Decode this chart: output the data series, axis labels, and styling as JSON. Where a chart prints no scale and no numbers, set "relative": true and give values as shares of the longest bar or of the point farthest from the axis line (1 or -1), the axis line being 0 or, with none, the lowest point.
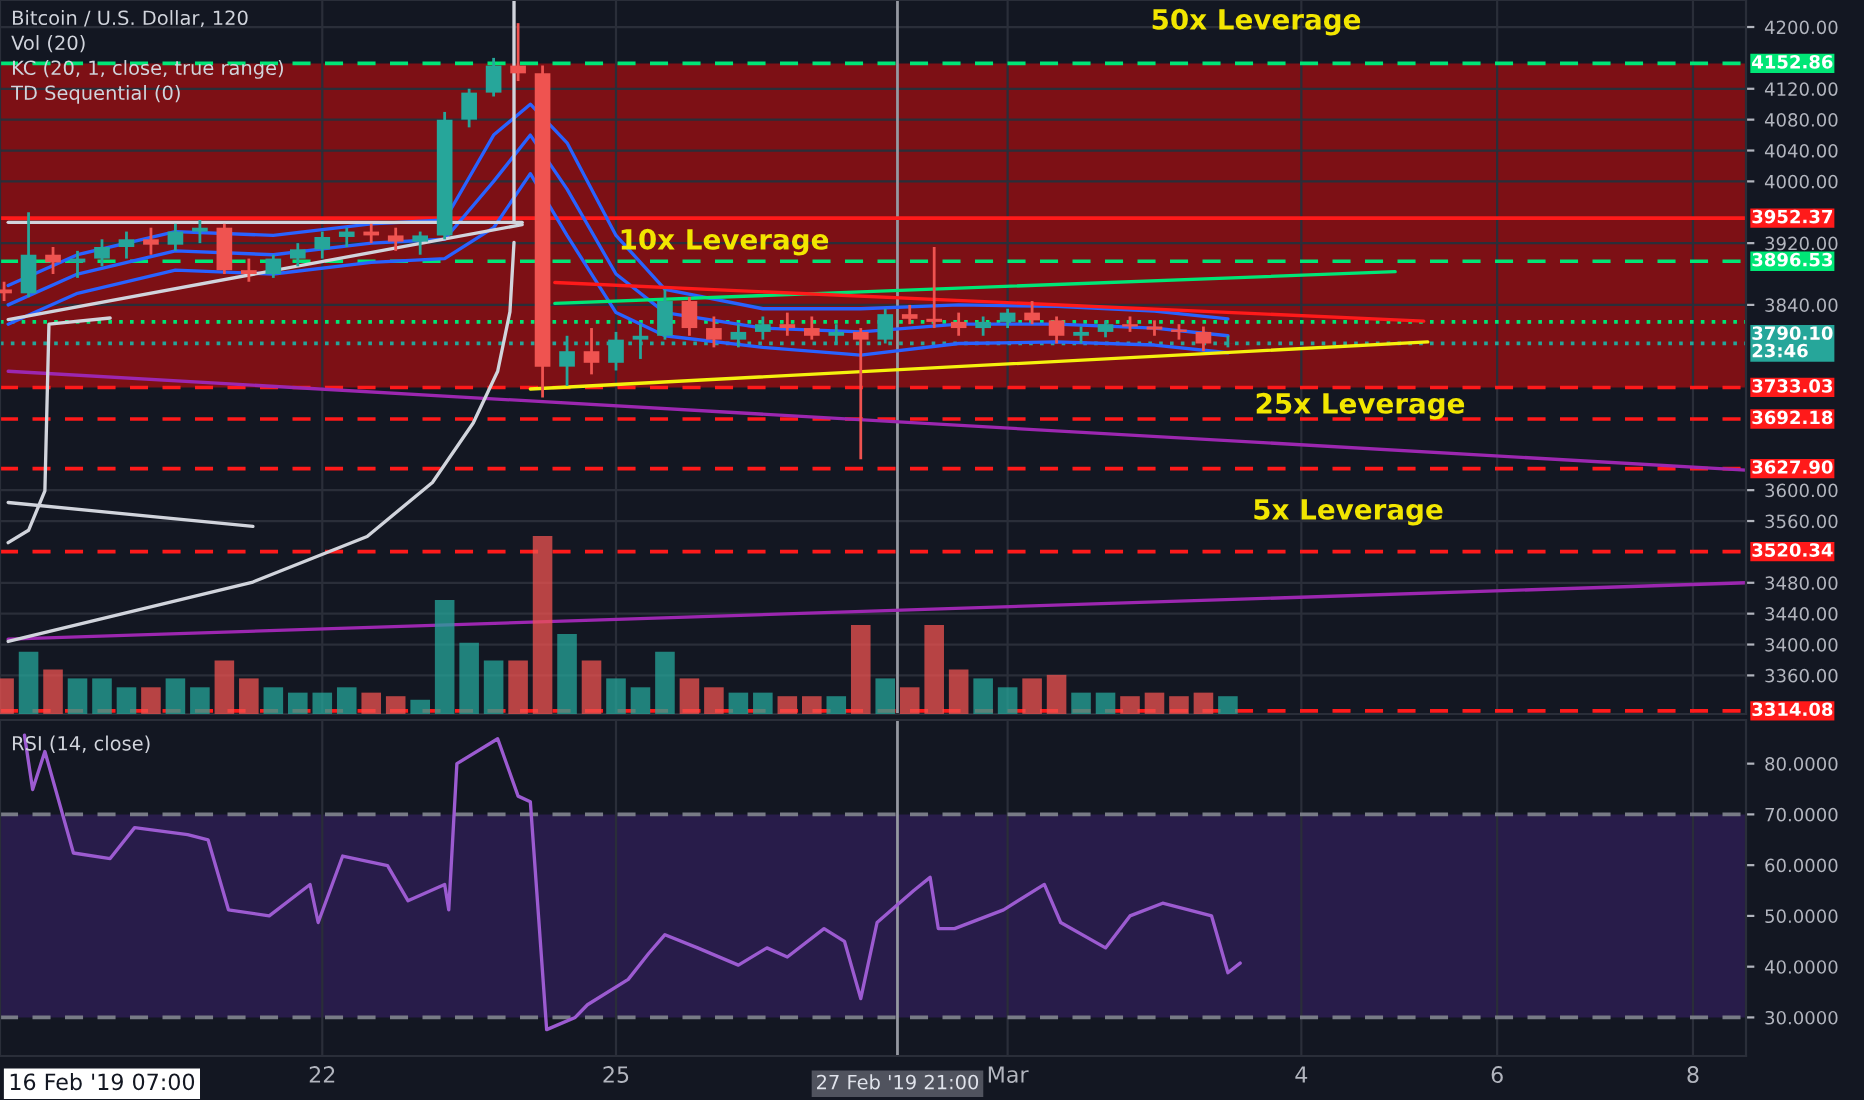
{
  "chart_data": [
    {
      "type": "candlestick",
      "title": "Bitcoin / U.S. Dollar, 120",
      "annotations": [
        "Vol (20)",
        "KC (20, 1, close, true range)",
        "TD Sequential (0)",
        "50x Leverage",
        "10x Leverage",
        "25x Leverage",
        "5x Leverage"
      ],
      "x": [
        "2019-02-18T18:00",
        "2019-02-19T00:00",
        "2019-02-19T06:00",
        "2019-02-19T12:00",
        "2019-02-19T18:00",
        "2019-02-20T00:00",
        "2019-02-20T06:00",
        "2019-02-20T12:00",
        "2019-02-20T18:00",
        "2019-02-21T00:00",
        "2019-02-21T06:00",
        "2019-02-21T12:00",
        "2019-02-21T18:00",
        "2019-02-22T00:00",
        "2019-02-22T06:00",
        "2019-02-22T12:00",
        "2019-02-22T18:00",
        "2019-02-23T00:00",
        "2019-02-23T06:00",
        "2019-02-23T12:00",
        "2019-02-23T18:00",
        "2019-02-24T00:00",
        "2019-02-24T06:00",
        "2019-02-24T12:00",
        "2019-02-24T18:00",
        "2019-02-25T00:00",
        "2019-02-25T06:00",
        "2019-02-25T12:00",
        "2019-02-25T18:00",
        "2019-02-26T00:00",
        "2019-02-26T06:00",
        "2019-02-26T12:00",
        "2019-02-26T18:00",
        "2019-02-27T00:00",
        "2019-02-27T06:00",
        "2019-02-27T12:00",
        "2019-02-27T18:00",
        "2019-02-28T00:00",
        "2019-02-28T06:00",
        "2019-02-28T12:00",
        "2019-02-28T18:00",
        "2019-03-01T00:00",
        "2019-03-01T06:00",
        "2019-03-01T12:00",
        "2019-03-01T18:00",
        "2019-03-02T00:00",
        "2019-03-02T06:00",
        "2019-03-02T12:00",
        "2019-03-02T18:00",
        "2019-03-03T00:00",
        "2019-03-03T06:00"
      ],
      "ohlc": [
        [
          3860,
          3870,
          3845,
          3855
        ],
        [
          3855,
          3960,
          3850,
          3905
        ],
        [
          3905,
          3915,
          3880,
          3895
        ],
        [
          3895,
          3910,
          3875,
          3900
        ],
        [
          3900,
          3925,
          3890,
          3915
        ],
        [
          3915,
          3935,
          3900,
          3925
        ],
        [
          3925,
          3940,
          3905,
          3918
        ],
        [
          3918,
          3945,
          3910,
          3935
        ],
        [
          3935,
          3950,
          3920,
          3940
        ],
        [
          3940,
          3945,
          3880,
          3885
        ],
        [
          3885,
          3900,
          3870,
          3880
        ],
        [
          3880,
          3905,
          3875,
          3900
        ],
        [
          3900,
          3920,
          3890,
          3912
        ],
        [
          3912,
          3935,
          3900,
          3928
        ],
        [
          3928,
          3940,
          3915,
          3935
        ],
        [
          3935,
          3945,
          3920,
          3930
        ],
        [
          3930,
          3940,
          3910,
          3922
        ],
        [
          3922,
          3935,
          3905,
          3930
        ],
        [
          3930,
          4090,
          3925,
          4080
        ],
        [
          4080,
          4120,
          4070,
          4115
        ],
        [
          4115,
          4160,
          4110,
          4150
        ],
        [
          4150,
          4205,
          4130,
          4140
        ],
        [
          4140,
          4150,
          3720,
          3760
        ],
        [
          3760,
          3800,
          3735,
          3780
        ],
        [
          3780,
          3810,
          3750,
          3765
        ],
        [
          3765,
          3805,
          3755,
          3795
        ],
        [
          3795,
          3815,
          3770,
          3800
        ],
        [
          3800,
          3860,
          3795,
          3845
        ],
        [
          3845,
          3850,
          3800,
          3810
        ],
        [
          3810,
          3825,
          3785,
          3795
        ],
        [
          3795,
          3815,
          3785,
          3805
        ],
        [
          3805,
          3825,
          3795,
          3815
        ],
        [
          3815,
          3830,
          3800,
          3810
        ],
        [
          3810,
          3825,
          3795,
          3800
        ],
        [
          3800,
          3815,
          3790,
          3805
        ],
        [
          3805,
          3810,
          3640,
          3795
        ],
        [
          3795,
          3835,
          3790,
          3828
        ],
        [
          3828,
          3840,
          3815,
          3822
        ],
        [
          3822,
          3915,
          3810,
          3818
        ],
        [
          3818,
          3830,
          3800,
          3810
        ],
        [
          3810,
          3825,
          3800,
          3818
        ],
        [
          3818,
          3835,
          3810,
          3830
        ],
        [
          3830,
          3845,
          3815,
          3820
        ],
        [
          3820,
          3825,
          3790,
          3800
        ],
        [
          3800,
          3812,
          3790,
          3805
        ],
        [
          3805,
          3820,
          3798,
          3815
        ],
        [
          3815,
          3825,
          3805,
          3812
        ],
        [
          3812,
          3820,
          3800,
          3808
        ],
        [
          3808,
          3815,
          3795,
          3805
        ],
        [
          3805,
          3812,
          3780,
          3790
        ],
        [
          3790,
          3800,
          3785,
          3790.1
        ]
      ],
      "colors": [
        "#ef5350",
        "#26a69a",
        "#ef5350",
        "#26a69a",
        "#26a69a",
        "#26a69a",
        "#ef5350",
        "#26a69a",
        "#26a69a",
        "#ef5350",
        "#ef5350",
        "#26a69a",
        "#26a69a",
        "#26a69a",
        "#26a69a",
        "#ef5350",
        "#ef5350",
        "#26a69a",
        "#26a69a",
        "#26a69a",
        "#26a69a",
        "#ef5350",
        "#ef5350",
        "#26a69a",
        "#ef5350",
        "#26a69a",
        "#26a69a",
        "#26a69a",
        "#ef5350",
        "#ef5350",
        "#26a69a",
        "#26a69a",
        "#ef5350",
        "#ef5350",
        "#26a69a",
        "#ef5350",
        "#26a69a",
        "#ef5350",
        "#ef5350",
        "#ef5350",
        "#26a69a",
        "#26a69a",
        "#ef5350",
        "#ef5350",
        "#26a69a",
        "#26a69a",
        "#ef5350",
        "#ef5350",
        "#ef5350",
        "#ef5350",
        "#26a69a"
      ],
      "series": [
        {
          "type": "line",
          "color": "#2962ff",
          "x": [
            "2019-02-18T19:00",
            "2019-02-19T12:00",
            "2019-02-20T12:00",
            "2019-02-21T12:00",
            "2019-02-22T12:00",
            "2019-02-23T06:00",
            "2019-02-23T18:00",
            "2019-02-24T03:00",
            "2019-02-24T12:00",
            "2019-02-25T00:00",
            "2019-02-25T12:00",
            "2019-02-26T12:00",
            "2019-02-27T12:00",
            "2019-02-28T12:00",
            "2019-03-01T12:00",
            "2019-03-02T12:00",
            "2019-03-03T06:00"
          ],
          "values": [
            3840,
            3880,
            3910,
            3905,
            3920,
            3925,
            4000,
            4060,
            3990,
            3880,
            3830,
            3810,
            3805,
            3815,
            3815,
            3810,
            3800
          ]
        },
        {
          "type": "line",
          "color": "#2962ff",
          "x": [
            "2019-02-18T19:00",
            "2019-02-19T12:00",
            "2019-02-20T12:00",
            "2019-02-21T12:00",
            "2019-02-22T12:00",
            "2019-02-23T06:00",
            "2019-02-23T18:00",
            "2019-02-24T03:00",
            "2019-02-24T12:00",
            "2019-02-25T00:00",
            "2019-02-25T12:00",
            "2019-02-26T12:00",
            "2019-02-27T12:00",
            "2019-02-28T12:00",
            "2019-03-01T12:00",
            "2019-03-02T12:00",
            "2019-03-03T06:00"
          ],
          "values": [
            3865,
            3905,
            3935,
            3930,
            3945,
            3950,
            4060,
            4100,
            4050,
            3930,
            3860,
            3835,
            3835,
            3840,
            3838,
            3832,
            3822
          ]
        },
        {
          "type": "line",
          "color": "#2962ff",
          "x": [
            "2019-02-18T19:00",
            "2019-02-19T12:00",
            "2019-02-20T12:00",
            "2019-02-21T12:00",
            "2019-02-22T12:00",
            "2019-02-23T06:00",
            "2019-02-23T18:00",
            "2019-02-24T03:00",
            "2019-02-24T12:00",
            "2019-02-25T00:00",
            "2019-02-25T12:00",
            "2019-02-26T12:00",
            "2019-02-27T12:00",
            "2019-02-28T12:00",
            "2019-03-01T12:00",
            "2019-03-02T12:00",
            "2019-03-03T06:00"
          ],
          "values": [
            3815,
            3855,
            3885,
            3880,
            3895,
            3900,
            3940,
            4010,
            3930,
            3830,
            3800,
            3785,
            3775,
            3790,
            3792,
            3788,
            3778
          ]
        },
        {
          "type": "line",
          "color": "#00e676",
          "x": [
            "2019-02-24T09:00",
            "2019-03-04T23:00"
          ],
          "values": [
            3842,
            3883
          ]
        },
        {
          "type": "line",
          "color": "#ff1a1a",
          "x": [
            "2019-02-24T09:00",
            "2019-03-05T06:00"
          ],
          "values": [
            3869,
            3819
          ]
        },
        {
          "type": "line",
          "color": "#f5f10e",
          "x": [
            "2019-02-24T03:00",
            "2019-03-05T07:00"
          ],
          "values": [
            3731,
            3792
          ]
        },
        {
          "type": "line",
          "color": "#9c27b0",
          "x": [
            "2019-02-18T19:00",
            "2019-03-08T13:00"
          ],
          "values": [
            3754,
            3626
          ]
        },
        {
          "type": "line",
          "color": "#9c27b0",
          "x": [
            "2019-02-18T19:00",
            "2019-03-08T13:00"
          ],
          "values": [
            3407,
            3480
          ]
        },
        {
          "type": "line",
          "color": "#d1d4dc",
          "x": [
            "2019-02-18T19:00",
            "2019-02-24T01:00"
          ],
          "values": [
            3947,
            3947
          ]
        },
        {
          "type": "line",
          "color": "#d1d4dc",
          "x": [
            "2019-02-18T19:00",
            "2019-02-24T01:00"
          ],
          "values": [
            3821,
            3944
          ]
        },
        {
          "type": "line",
          "color": "#d1d4dc",
          "x": [
            "2019-02-23T23:00",
            "2019-02-23T23:00"
          ],
          "values": [
            4235,
            3947
          ]
        },
        {
          "type": "line",
          "color": "#d1d4dc",
          "x": [
            "2019-02-23T23:00",
            "2019-02-23T22:00",
            "2019-02-23T19:00",
            "2019-02-23T13:00",
            "2019-02-23T03:00",
            "2019-02-22T11:00",
            "2019-02-21T07:00",
            "2019-02-18T19:00"
          ],
          "values": [
            3921,
            3831,
            3754,
            3687,
            3610,
            3540,
            3481,
            3404
          ]
        },
        {
          "type": "line",
          "color": "#d1d4dc",
          "x": [
            "2019-02-19T20:00",
            "2019-02-19T05:00",
            "2019-02-19T04:00",
            "2019-02-19T00:00",
            "2019-02-18T19:00"
          ],
          "values": [
            3823,
            3815,
            3599,
            3548,
            3532
          ]
        },
        {
          "type": "line",
          "color": "#d1d4dc",
          "x": [
            "2019-02-18T19:00",
            "2019-02-21T07:00"
          ],
          "values": [
            3584,
            3553
          ]
        }
      ],
      "bands": [
        {
          "axis": "y",
          "from": 3952.37,
          "to": 4152.86,
          "color": "#8a0f14"
        },
        {
          "axis": "y",
          "from": 3733.03,
          "to": 3952.37,
          "color": "#8a0f14"
        }
      ],
      "ref_lines": [
        {
          "axis": "y",
          "value": 4152.86,
          "label": "4152.86",
          "color": "#00e676",
          "line_style": "dashed"
        },
        {
          "axis": "y",
          "value": 3952.37,
          "label": "3952.37",
          "color": "#ff1a1a",
          "line_style": "solid"
        },
        {
          "axis": "y",
          "value": 3896.53,
          "label": "3896.53",
          "color": "#00e676",
          "line_style": "dashed"
        },
        {
          "axis": "y",
          "value": 3818,
          "color": "#00e676",
          "line_style": "dotted"
        },
        {
          "axis": "y",
          "value": 3790.1,
          "label": "3790.10\n23:46",
          "color": "#26a69a",
          "line_style": "dotted"
        },
        {
          "axis": "y",
          "value": 3733.03,
          "label": "3733.03",
          "color": "#ff1a1a",
          "line_style": "dashed"
        },
        {
          "axis": "y",
          "value": 3692.18,
          "label": "3692.18",
          "color": "#ff1a1a",
          "line_style": "dashed"
        },
        {
          "axis": "y",
          "value": 3627.9,
          "label": "3627.90",
          "color": "#ff1a1a",
          "line_style": "dashed"
        },
        {
          "axis": "y",
          "value": 3520.34,
          "label": "3520.34",
          "color": "#ff1a1a",
          "line_style": "dashed"
        },
        {
          "axis": "y",
          "value": 3314.08,
          "label": "3314.08",
          "color": "#ff1a1a",
          "line_style": "dashed"
        },
        {
          "axis": "x",
          "value": "2019-02-27T21:00",
          "color": "#9598a1",
          "line_style": "solid"
        }
      ],
      "xlim": [
        "2019-02-18T17:00",
        "2019-03-08T13:00"
      ],
      "xticks": [
        {
          "value": "2019-02-22",
          "label": null
        },
        {
          "value": "2019-02-25",
          "label": null
        },
        {
          "value": "2019-03-01",
          "label": null
        },
        {
          "value": "2019-03-04",
          "label": null
        },
        {
          "value": "2019-03-06",
          "label": null
        },
        {
          "value": "2019-03-08",
          "label": null
        }
      ],
      "ylim": [
        3310,
        4235
      ],
      "yticks": [
        {
          "value": 3360,
          "label": "3360.00"
        },
        {
          "value": 3400,
          "label": "3400.00"
        },
        {
          "value": 3440,
          "label": "3440.00"
        },
        {
          "value": 3480,
          "label": "3480.00"
        },
        {
          "value": 3560,
          "label": "3560.00"
        },
        {
          "value": 3600,
          "label": "3600.00"
        },
        {
          "value": 3840,
          "label": "3840.00"
        },
        {
          "value": 3920,
          "label": "3920.00"
        },
        {
          "value": 4000,
          "label": "4000.00"
        },
        {
          "value": 4040,
          "label": "4040.00"
        },
        {
          "value": 4080,
          "label": "4080.00"
        },
        {
          "value": 4120,
          "label": "4120.00"
        },
        {
          "value": 4200,
          "label": "4200.00"
        }
      ],
      "tick_labels": "y",
      "grid": true
    },
    {
      "type": "bar",
      "relative": true,
      "tick_labels": false,
      "xlim": [
        "2019-02-18T17:00",
        "2019-03-08T13:00"
      ],
      "x": [
        "2019-02-18T18:00",
        "2019-02-19T00:00",
        "2019-02-19T06:00",
        "2019-02-19T12:00",
        "2019-02-19T18:00",
        "2019-02-20T00:00",
        "2019-02-20T06:00",
        "2019-02-20T12:00",
        "2019-02-20T18:00",
        "2019-02-21T00:00",
        "2019-02-21T06:00",
        "2019-02-21T12:00",
        "2019-02-21T18:00",
        "2019-02-22T00:00",
        "2019-02-22T06:00",
        "2019-02-22T12:00",
        "2019-02-22T18:00",
        "2019-02-23T00:00",
        "2019-02-23T06:00",
        "2019-02-23T12:00",
        "2019-02-23T18:00",
        "2019-02-24T00:00",
        "2019-02-24T06:00",
        "2019-02-24T12:00",
        "2019-02-24T18:00",
        "2019-02-25T00:00",
        "2019-02-25T06:00",
        "2019-02-25T12:00",
        "2019-02-25T18:00",
        "2019-02-26T00:00",
        "2019-02-26T06:00",
        "2019-02-26T12:00",
        "2019-02-26T18:00",
        "2019-02-27T00:00",
        "2019-02-27T06:00",
        "2019-02-27T12:00",
        "2019-02-27T18:00",
        "2019-02-28T00:00",
        "2019-02-28T06:00",
        "2019-02-28T12:00",
        "2019-02-28T18:00",
        "2019-03-01T00:00",
        "2019-03-01T06:00",
        "2019-03-01T12:00",
        "2019-03-01T18:00",
        "2019-03-02T00:00",
        "2019-03-02T06:00",
        "2019-03-02T12:00",
        "2019-03-02T18:00",
        "2019-03-03T00:00",
        "2019-03-03T06:00"
      ],
      "values": [
        0.2,
        0.35,
        0.25,
        0.2,
        0.2,
        0.15,
        0.15,
        0.2,
        0.15,
        0.3,
        0.2,
        0.15,
        0.12,
        0.12,
        0.15,
        0.12,
        0.1,
        0.08,
        0.64,
        0.4,
        0.3,
        0.3,
        1.0,
        0.45,
        0.3,
        0.2,
        0.15,
        0.35,
        0.2,
        0.15,
        0.12,
        0.12,
        0.1,
        0.1,
        0.1,
        0.5,
        0.2,
        0.15,
        0.5,
        0.25,
        0.2,
        0.15,
        0.2,
        0.22,
        0.12,
        0.12,
        0.1,
        0.12,
        0.1,
        0.12,
        0.1
      ],
      "colors": [
        "#ef5350",
        "#26a69a",
        "#ef5350",
        "#26a69a",
        "#26a69a",
        "#26a69a",
        "#ef5350",
        "#26a69a",
        "#26a69a",
        "#ef5350",
        "#ef5350",
        "#26a69a",
        "#26a69a",
        "#26a69a",
        "#26a69a",
        "#ef5350",
        "#ef5350",
        "#26a69a",
        "#26a69a",
        "#26a69a",
        "#26a69a",
        "#ef5350",
        "#ef5350",
        "#26a69a",
        "#ef5350",
        "#26a69a",
        "#26a69a",
        "#26a69a",
        "#ef5350",
        "#ef5350",
        "#26a69a",
        "#26a69a",
        "#ef5350",
        "#ef5350",
        "#26a69a",
        "#ef5350",
        "#26a69a",
        "#ef5350",
        "#ef5350",
        "#ef5350",
        "#26a69a",
        "#26a69a",
        "#ef5350",
        "#ef5350",
        "#26a69a",
        "#26a69a",
        "#ef5350",
        "#ef5350",
        "#ef5350",
        "#ef5350",
        "#26a69a"
      ]
    },
    {
      "type": "line",
      "xlabel": "16 Feb '19 07:00",
      "annotations": [
        "RSI (14, close)"
      ],
      "series": [
        {
          "color": "#9c5bd1",
          "x": [
            "2019-02-18T23:00",
            "2019-02-19T01:00",
            "2019-02-19T04:00",
            "2019-02-19T11:00",
            "2019-02-19T20:00",
            "2019-02-20T02:00",
            "2019-02-20T15:00",
            "2019-02-20T20:00",
            "2019-02-21T01:00",
            "2019-02-21T11:00",
            "2019-02-21T21:00",
            "2019-02-21T23:00",
            "2019-02-22T05:00",
            "2019-02-22T16:00",
            "2019-02-22T21:00",
            "2019-02-23T06:00",
            "2019-02-23T07:00",
            "2019-02-23T09:00",
            "2019-02-23T19:00",
            "2019-02-24T00:00",
            "2019-02-24T03:00",
            "2019-02-24T07:00",
            "2019-02-24T14:00",
            "2019-02-24T17:00",
            "2019-02-25T03:00",
            "2019-02-25T08:00",
            "2019-02-25T12:00",
            "2019-02-25T20:00",
            "2019-02-26T06:00",
            "2019-02-26T13:00",
            "2019-02-26T18:00",
            "2019-02-27T03:00",
            "2019-02-27T08:00",
            "2019-02-27T12:00",
            "2019-02-27T16:00",
            "2019-02-28T01:00",
            "2019-02-28T05:00",
            "2019-02-28T07:00",
            "2019-02-28T11:00",
            "2019-02-28T23:00",
            "2019-03-01T09:00",
            "2019-03-01T13:00",
            "2019-03-02T00:00",
            "2019-03-02T06:00",
            "2019-03-02T14:00",
            "2019-03-03T02:00",
            "2019-03-03T06:00",
            "2019-03-03T09:00"
          ],
          "values": [
            85.6,
            74.9,
            82.4,
            62.4,
            61.3,
            67.4,
            66,
            65,
            51.2,
            50,
            56.2,
            48.7,
            61.8,
            59.9,
            53,
            56.2,
            51.2,
            80,
            84.9,
            73.6,
            72.5,
            27.6,
            30,
            32.5,
            37.5,
            42.6,
            46.3,
            43.7,
            40.3,
            43.7,
            41.9,
            47.5,
            45,
            33.7,
            48.7,
            55,
            57.6,
            47.5,
            47.5,
            51.2,
            56.2,
            48.7,
            43.7,
            50,
            52.5,
            50,
            38.8,
            40.7
          ]
        }
      ],
      "bands": [
        {
          "axis": "y",
          "from": 30,
          "to": 70,
          "color": "#2b1d4f"
        }
      ],
      "ref_lines": [
        {
          "axis": "y",
          "value": 70,
          "color": "#787b86",
          "line_style": "dashed"
        },
        {
          "axis": "y",
          "value": 30,
          "color": "#787b86",
          "line_style": "dashed"
        },
        {
          "axis": "x",
          "value": "2019-02-27T21:00",
          "label": "27 Feb '19 21:00",
          "color": "#9598a1",
          "line_style": "solid"
        }
      ],
      "xlim": [
        "2019-02-18T17:00",
        "2019-03-08T13:00"
      ],
      "xticks": [
        {
          "value": "2019-02-22",
          "label": "22"
        },
        {
          "value": "2019-02-25",
          "label": "25"
        },
        {
          "value": "2019-03-01",
          "label": "Mar"
        },
        {
          "value": "2019-03-04",
          "label": "4"
        },
        {
          "value": "2019-03-06",
          "label": "6"
        },
        {
          "value": "2019-03-08",
          "label": "8"
        }
      ],
      "ylim": [
        22.4,
        88.6
      ],
      "yticks": [
        {
          "value": 30,
          "label": "30.0000"
        },
        {
          "value": 40,
          "label": "40.0000"
        },
        {
          "value": 50,
          "label": "50.0000"
        },
        {
          "value": 60,
          "label": "60.0000"
        },
        {
          "value": 70,
          "label": "70.0000"
        },
        {
          "value": 80,
          "label": "80.0000"
        }
      ],
      "grid": "x"
    }
  ]
}
